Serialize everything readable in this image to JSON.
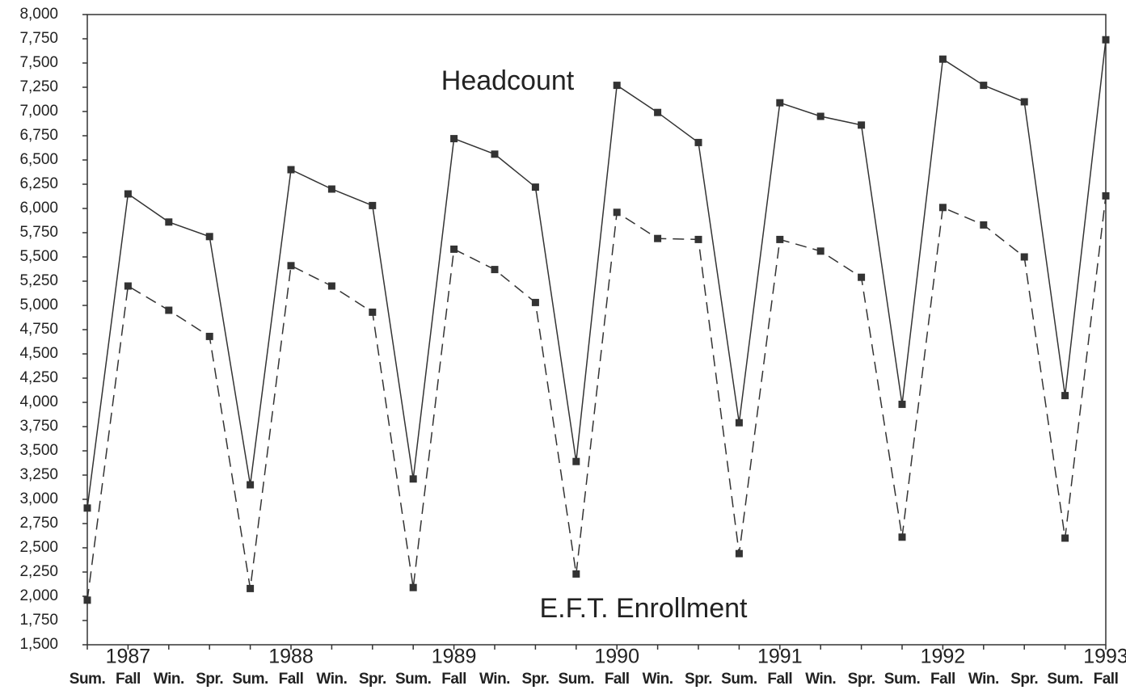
{
  "chart_data": {
    "type": "line",
    "categories": [
      "Sum.",
      "Fall",
      "Win.",
      "Spr.",
      "Sum.",
      "Fall",
      "Win.",
      "Spr.",
      "Sum.",
      "Fall",
      "Win.",
      "Spr.",
      "Sum.",
      "Fall",
      "Win.",
      "Spr.",
      "Sum.",
      "Fall",
      "Win.",
      "Spr.",
      "Sum.",
      "Fall",
      "Win.",
      "Spr.",
      "Sum.",
      "Fall"
    ],
    "years": [
      null,
      "1987",
      null,
      null,
      null,
      "1988",
      null,
      null,
      null,
      "1989",
      null,
      null,
      null,
      "1990",
      null,
      null,
      null,
      "1991",
      null,
      null,
      null,
      "1992",
      null,
      null,
      null,
      "1993"
    ],
    "series": [
      {
        "name": "Headcount",
        "color": "#333333",
        "line_style": "solid",
        "values": [
          2910,
          6150,
          5860,
          5710,
          3150,
          6400,
          6200,
          6030,
          3210,
          6720,
          6560,
          6220,
          3390,
          7270,
          6990,
          6680,
          3790,
          7090,
          6950,
          6860,
          3980,
          7540,
          7270,
          7100,
          4070,
          7740
        ]
      },
      {
        "name": "E.F.T. Enrollment",
        "color": "#333333",
        "line_style": "dashed",
        "values": [
          1960,
          5200,
          4950,
          4680,
          2080,
          5410,
          5200,
          4930,
          2090,
          5580,
          5370,
          5030,
          2230,
          5960,
          5690,
          5680,
          2440,
          5680,
          5560,
          5290,
          2610,
          6010,
          5830,
          5500,
          2600,
          6130
        ]
      }
    ],
    "ylim": [
      1500,
      8000
    ],
    "yticks": [
      {
        "value": 1500,
        "label": "1,500"
      },
      {
        "value": 1750,
        "label": "1,750"
      },
      {
        "value": 2000,
        "label": "2,000"
      },
      {
        "value": 2250,
        "label": "2,250"
      },
      {
        "value": 2500,
        "label": "2,500"
      },
      {
        "value": 2750,
        "label": "2,750"
      },
      {
        "value": 3000,
        "label": "3,000"
      },
      {
        "value": 3250,
        "label": "3,250"
      },
      {
        "value": 3500,
        "label": "3,500"
      },
      {
        "value": 3750,
        "label": "3,750"
      },
      {
        "value": 4000,
        "label": "4,000"
      },
      {
        "value": 4250,
        "label": "4,250"
      },
      {
        "value": 4500,
        "label": "4,500"
      },
      {
        "value": 4750,
        "label": "4,750"
      },
      {
        "value": 5000,
        "label": "5,000"
      },
      {
        "value": 5250,
        "label": "5,250"
      },
      {
        "value": 5500,
        "label": "5,500"
      },
      {
        "value": 5750,
        "label": "5,750"
      },
      {
        "value": 6000,
        "label": "6,000"
      },
      {
        "value": 6250,
        "label": "6,250"
      },
      {
        "value": 6500,
        "label": "6,500"
      },
      {
        "value": 6750,
        "label": "6,750"
      },
      {
        "value": 7000,
        "label": "7,000"
      },
      {
        "value": 7250,
        "label": "7,250"
      },
      {
        "value": 7500,
        "label": "7,500"
      },
      {
        "value": 7750,
        "label": "7,750"
      },
      {
        "value": 8000,
        "label": "8,000"
      }
    ],
    "grid": false
  }
}
